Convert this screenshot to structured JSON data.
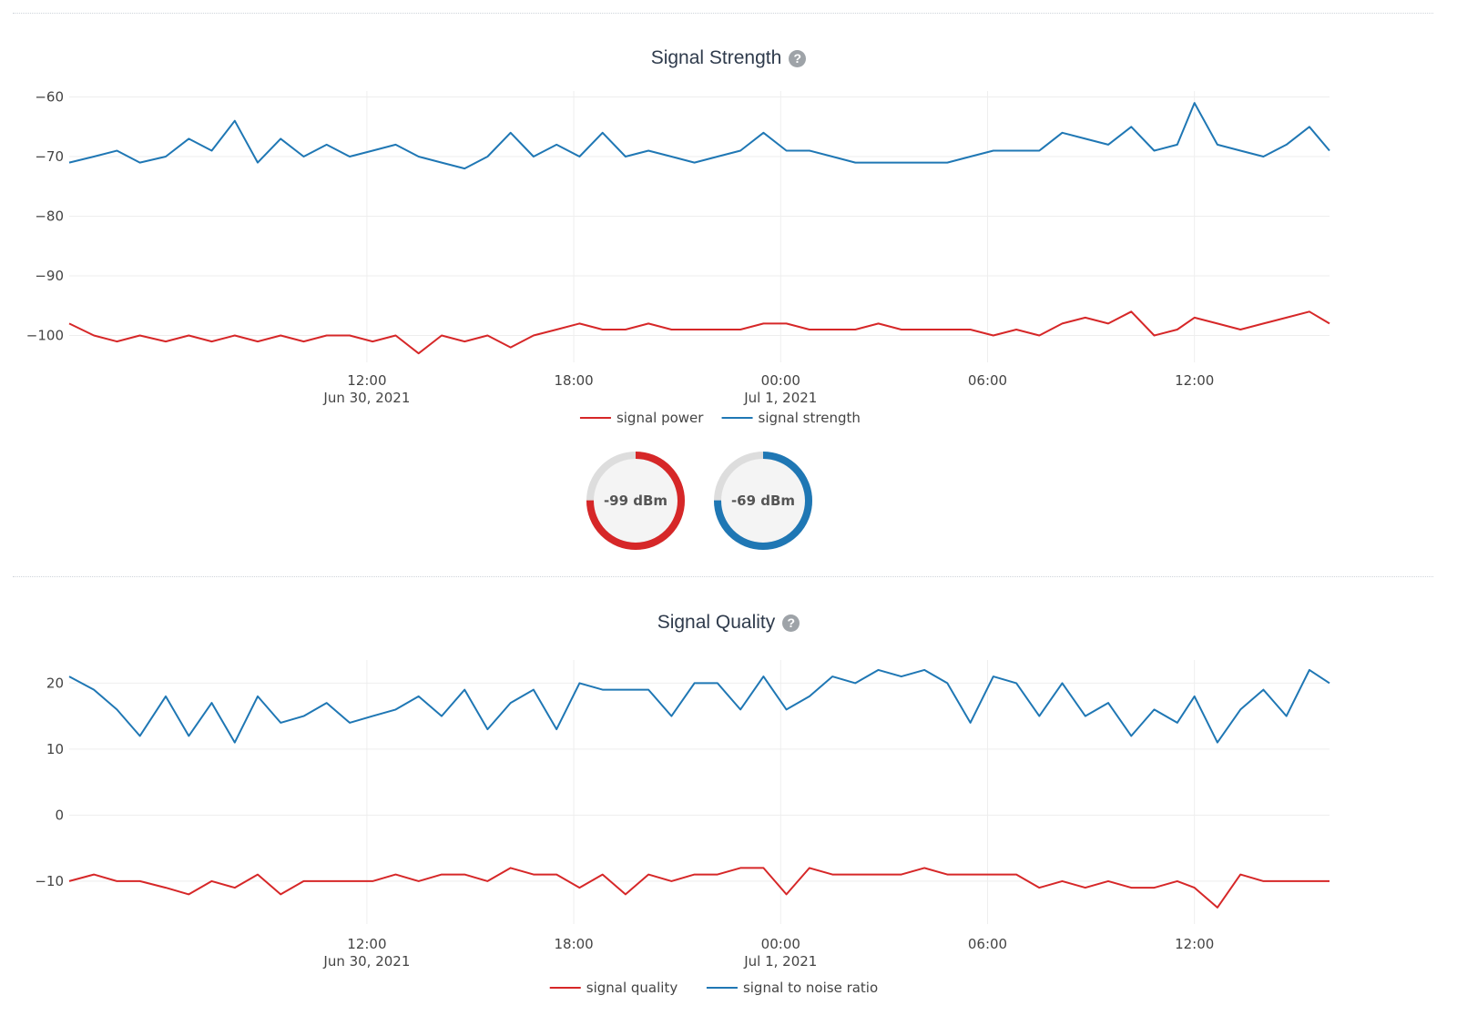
{
  "charts": [
    {
      "title": "Signal Strength",
      "help_icon": "question-circle-icon",
      "chart_data": {
        "type": "line",
        "ylim": [
          -104.5,
          -59
        ],
        "yticks": [
          -60,
          -70,
          -80,
          -90,
          -100
        ],
        "ytick_labels": [
          "−60",
          "−70",
          "−80",
          "−90",
          "−100"
        ],
        "xlim": [
          "2021-06-30 03:22",
          "2021-07-01 15:55"
        ],
        "xticks": [
          {
            "t": "2021-06-30 12:00",
            "line1": "12:00",
            "line2": "Jun 30, 2021"
          },
          {
            "t": "2021-06-30 18:00",
            "line1": "18:00",
            "line2": ""
          },
          {
            "t": "2021-07-01 00:00",
            "line1": "00:00",
            "line2": "Jul 1, 2021"
          },
          {
            "t": "2021-07-01 06:00",
            "line1": "06:00",
            "line2": ""
          },
          {
            "t": "2021-07-01 12:00",
            "line1": "12:00",
            "line2": ""
          }
        ],
        "grid": true,
        "legend_position": "bottom-center",
        "x": [
          "2021-06-30 03:22",
          "2021-06-30 04:05",
          "2021-06-30 04:45",
          "2021-06-30 05:25",
          "2021-06-30 06:10",
          "2021-06-30 06:50",
          "2021-06-30 07:30",
          "2021-06-30 08:10",
          "2021-06-30 08:50",
          "2021-06-30 09:30",
          "2021-06-30 10:10",
          "2021-06-30 10:50",
          "2021-06-30 11:30",
          "2021-06-30 12:10",
          "2021-06-30 12:50",
          "2021-06-30 13:30",
          "2021-06-30 14:10",
          "2021-06-30 14:50",
          "2021-06-30 15:30",
          "2021-06-30 16:10",
          "2021-06-30 16:50",
          "2021-06-30 17:30",
          "2021-06-30 18:10",
          "2021-06-30 18:50",
          "2021-06-30 19:30",
          "2021-06-30 20:10",
          "2021-06-30 20:50",
          "2021-06-30 21:30",
          "2021-06-30 22:10",
          "2021-06-30 22:50",
          "2021-06-30 23:30",
          "2021-07-01 00:10",
          "2021-07-01 00:50",
          "2021-07-01 01:30",
          "2021-07-01 02:10",
          "2021-07-01 02:50",
          "2021-07-01 03:30",
          "2021-07-01 04:10",
          "2021-07-01 04:50",
          "2021-07-01 05:30",
          "2021-07-01 06:10",
          "2021-07-01 06:50",
          "2021-07-01 07:30",
          "2021-07-01 08:10",
          "2021-07-01 08:50",
          "2021-07-01 09:30",
          "2021-07-01 10:10",
          "2021-07-01 10:50",
          "2021-07-01 11:30",
          "2021-07-01 12:00",
          "2021-07-01 12:40",
          "2021-07-01 13:20",
          "2021-07-01 14:00",
          "2021-07-01 14:40",
          "2021-07-01 15:20",
          "2021-07-01 15:55"
        ],
        "series": [
          {
            "name": "signal power",
            "color": "#d62728",
            "values": [
              -98,
              -100,
              -101,
              -100,
              -101,
              -100,
              -101,
              -100,
              -101,
              -100,
              -101,
              -100,
              -100,
              -101,
              -100,
              -103,
              -100,
              -101,
              -100,
              -102,
              -100,
              -99,
              -98,
              -99,
              -99,
              -98,
              -99,
              -99,
              -99,
              -99,
              -98,
              -98,
              -99,
              -99,
              -99,
              -98,
              -99,
              -99,
              -99,
              -99,
              -100,
              -99,
              -100,
              -98,
              -97,
              -98,
              -96,
              -100,
              -99,
              -97,
              -98,
              -99,
              -98,
              -97,
              -96,
              -98
            ]
          },
          {
            "name": "signal strength",
            "color": "#1f77b4",
            "values": [
              -71,
              -70,
              -69,
              -71,
              -70,
              -67,
              -69,
              -64,
              -71,
              -67,
              -70,
              -68,
              -70,
              -69,
              -68,
              -70,
              -71,
              -72,
              -70,
              -66,
              -70,
              -68,
              -70,
              -66,
              -70,
              -69,
              -70,
              -71,
              -70,
              -69,
              -66,
              -69,
              -69,
              -70,
              -71,
              -71,
              -71,
              -71,
              -71,
              -70,
              -69,
              -69,
              -69,
              -66,
              -67,
              -68,
              -65,
              -69,
              -68,
              -61,
              -68,
              -69,
              -70,
              -68,
              -65,
              -69
            ]
          }
        ]
      },
      "gauges": [
        {
          "label": "-99 dBm",
          "value": -99,
          "fraction": 0.75,
          "color": "#d62728"
        },
        {
          "label": "-69 dBm",
          "value": -69,
          "fraction": 0.75,
          "color": "#1f77b4"
        }
      ]
    },
    {
      "title": "Signal Quality",
      "help_icon": "question-circle-icon",
      "chart_data": {
        "type": "line",
        "ylim": [
          -16.5,
          23.5
        ],
        "yticks": [
          20,
          10,
          0,
          -10
        ],
        "ytick_labels": [
          "20",
          "10",
          "0",
          "−10"
        ],
        "xlim": [
          "2021-06-30 03:22",
          "2021-07-01 15:55"
        ],
        "xticks": [
          {
            "t": "2021-06-30 12:00",
            "line1": "12:00",
            "line2": "Jun 30, 2021"
          },
          {
            "t": "2021-06-30 18:00",
            "line1": "18:00",
            "line2": ""
          },
          {
            "t": "2021-07-01 00:00",
            "line1": "00:00",
            "line2": "Jul 1, 2021"
          },
          {
            "t": "2021-07-01 06:00",
            "line1": "06:00",
            "line2": ""
          },
          {
            "t": "2021-07-01 12:00",
            "line1": "12:00",
            "line2": ""
          }
        ],
        "grid": true,
        "legend_position": "bottom-center",
        "x": [
          "2021-06-30 03:22",
          "2021-06-30 04:05",
          "2021-06-30 04:45",
          "2021-06-30 05:25",
          "2021-06-30 06:10",
          "2021-06-30 06:50",
          "2021-06-30 07:30",
          "2021-06-30 08:10",
          "2021-06-30 08:50",
          "2021-06-30 09:30",
          "2021-06-30 10:10",
          "2021-06-30 10:50",
          "2021-06-30 11:30",
          "2021-06-30 12:10",
          "2021-06-30 12:50",
          "2021-06-30 13:30",
          "2021-06-30 14:10",
          "2021-06-30 14:50",
          "2021-06-30 15:30",
          "2021-06-30 16:10",
          "2021-06-30 16:50",
          "2021-06-30 17:30",
          "2021-06-30 18:10",
          "2021-06-30 18:50",
          "2021-06-30 19:30",
          "2021-06-30 20:10",
          "2021-06-30 20:50",
          "2021-06-30 21:30",
          "2021-06-30 22:10",
          "2021-06-30 22:50",
          "2021-06-30 23:30",
          "2021-07-01 00:10",
          "2021-07-01 00:50",
          "2021-07-01 01:30",
          "2021-07-01 02:10",
          "2021-07-01 02:50",
          "2021-07-01 03:30",
          "2021-07-01 04:10",
          "2021-07-01 04:50",
          "2021-07-01 05:30",
          "2021-07-01 06:10",
          "2021-07-01 06:50",
          "2021-07-01 07:30",
          "2021-07-01 08:10",
          "2021-07-01 08:50",
          "2021-07-01 09:30",
          "2021-07-01 10:10",
          "2021-07-01 10:50",
          "2021-07-01 11:30",
          "2021-07-01 12:00",
          "2021-07-01 12:40",
          "2021-07-01 13:20",
          "2021-07-01 14:00",
          "2021-07-01 14:40",
          "2021-07-01 15:20",
          "2021-07-01 15:55"
        ],
        "series": [
          {
            "name": "signal quality",
            "color": "#d62728",
            "values": [
              -10,
              -9,
              -10,
              -10,
              -11,
              -12,
              -10,
              -11,
              -9,
              -12,
              -10,
              -10,
              -10,
              -10,
              -9,
              -10,
              -9,
              -9,
              -10,
              -8,
              -9,
              -9,
              -11,
              -9,
              -12,
              -9,
              -10,
              -9,
              -9,
              -8,
              -8,
              -12,
              -8,
              -9,
              -9,
              -9,
              -9,
              -8,
              -9,
              -9,
              -9,
              -9,
              -11,
              -10,
              -11,
              -10,
              -11,
              -11,
              -10,
              -11,
              -14,
              -9,
              -10,
              -10,
              -10,
              -10
            ]
          },
          {
            "name": "signal to noise ratio",
            "color": "#1f77b4",
            "values": [
              21,
              19,
              16,
              12,
              18,
              12,
              17,
              11,
              18,
              14,
              15,
              17,
              14,
              15,
              16,
              18,
              15,
              19,
              13,
              17,
              19,
              13,
              20,
              19,
              19,
              19,
              15,
              20,
              20,
              16,
              21,
              16,
              18,
              21,
              20,
              22,
              21,
              22,
              20,
              14,
              21,
              20,
              15,
              20,
              15,
              17,
              12,
              16,
              14,
              18,
              11,
              16,
              19,
              15,
              22,
              20
            ]
          }
        ]
      }
    }
  ]
}
